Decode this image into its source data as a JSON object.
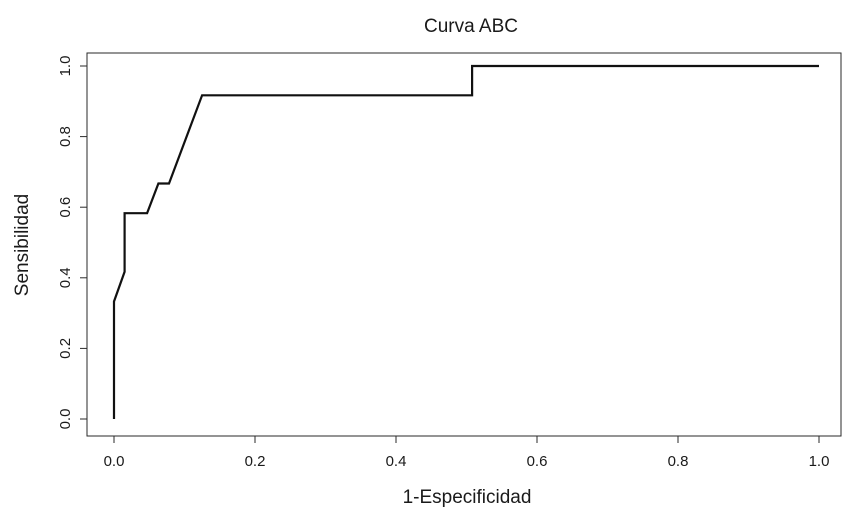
{
  "chart_data": {
    "type": "line",
    "title": "Curva ABC",
    "xlabel": "1-Especificidad",
    "ylabel": "Sensibilidad",
    "xlim": [
      0.0,
      1.0
    ],
    "ylim": [
      0.0,
      1.0
    ],
    "x_ticks": [
      "0.0",
      "0.2",
      "0.4",
      "0.6",
      "0.8",
      "1.0"
    ],
    "y_ticks": [
      "0.0",
      "0.2",
      "0.4",
      "0.6",
      "0.8",
      "1.0"
    ],
    "grid": false,
    "legend": "none",
    "line_color": "#111111",
    "series": [
      {
        "x": [
          0.0,
          0.0,
          0.015,
          0.015,
          0.047,
          0.063,
          0.078,
          0.125,
          0.508,
          0.508,
          1.0
        ],
        "y": [
          0.0,
          0.333,
          0.417,
          0.583,
          0.583,
          0.667,
          0.667,
          0.917,
          0.917,
          1.0,
          1.0
        ]
      }
    ]
  }
}
